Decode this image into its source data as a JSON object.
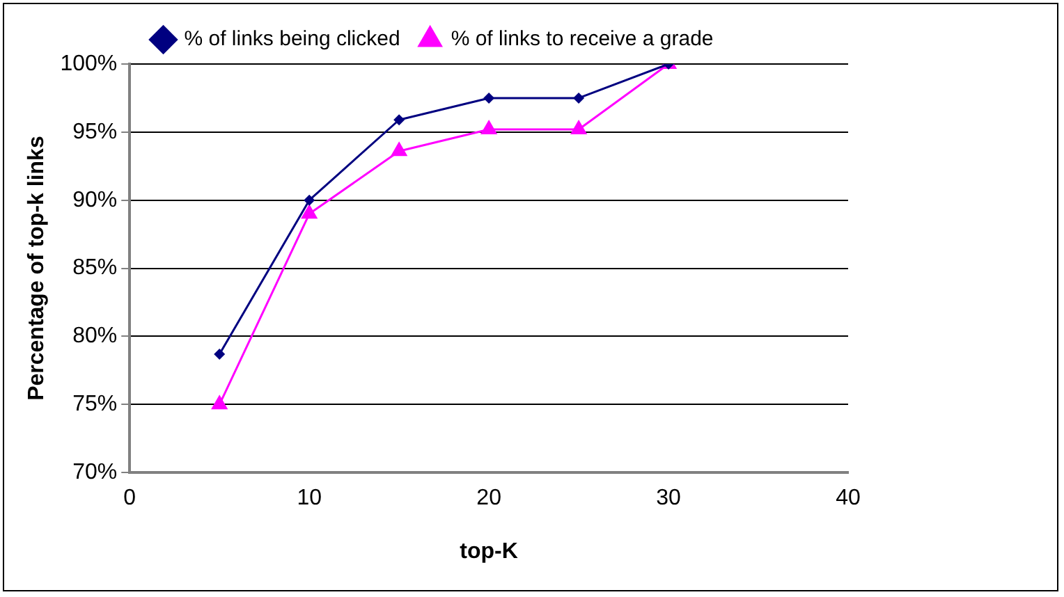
{
  "chart_data": {
    "type": "line",
    "xlabel": "top-K",
    "ylabel": "Percentage of top-k links",
    "x": [
      5,
      10,
      15,
      20,
      25,
      30
    ],
    "series": [
      {
        "name": "% of links being clicked",
        "color": "#000080",
        "marker": "diamond",
        "values": [
          78.7,
          90,
          95.9,
          97.5,
          97.5,
          100
        ]
      },
      {
        "name": "% of links to receive a grade",
        "color": "#ff00ff",
        "marker": "triangle",
        "values": [
          75,
          89,
          93.6,
          95.2,
          95.2,
          100
        ]
      }
    ],
    "xlim": [
      0,
      40
    ],
    "xticks": [
      0,
      10,
      20,
      30,
      40
    ],
    "ylim": [
      70,
      100
    ],
    "yticks": [
      {
        "value": 70,
        "label": "70%"
      },
      {
        "value": 75,
        "label": "75%"
      },
      {
        "value": 80,
        "label": "80%"
      },
      {
        "value": 85,
        "label": "85%"
      },
      {
        "value": 90,
        "label": "90%"
      },
      {
        "value": 95,
        "label": "95%"
      },
      {
        "value": 100,
        "label": "100%"
      }
    ],
    "grid": "y",
    "legend": "top"
  }
}
